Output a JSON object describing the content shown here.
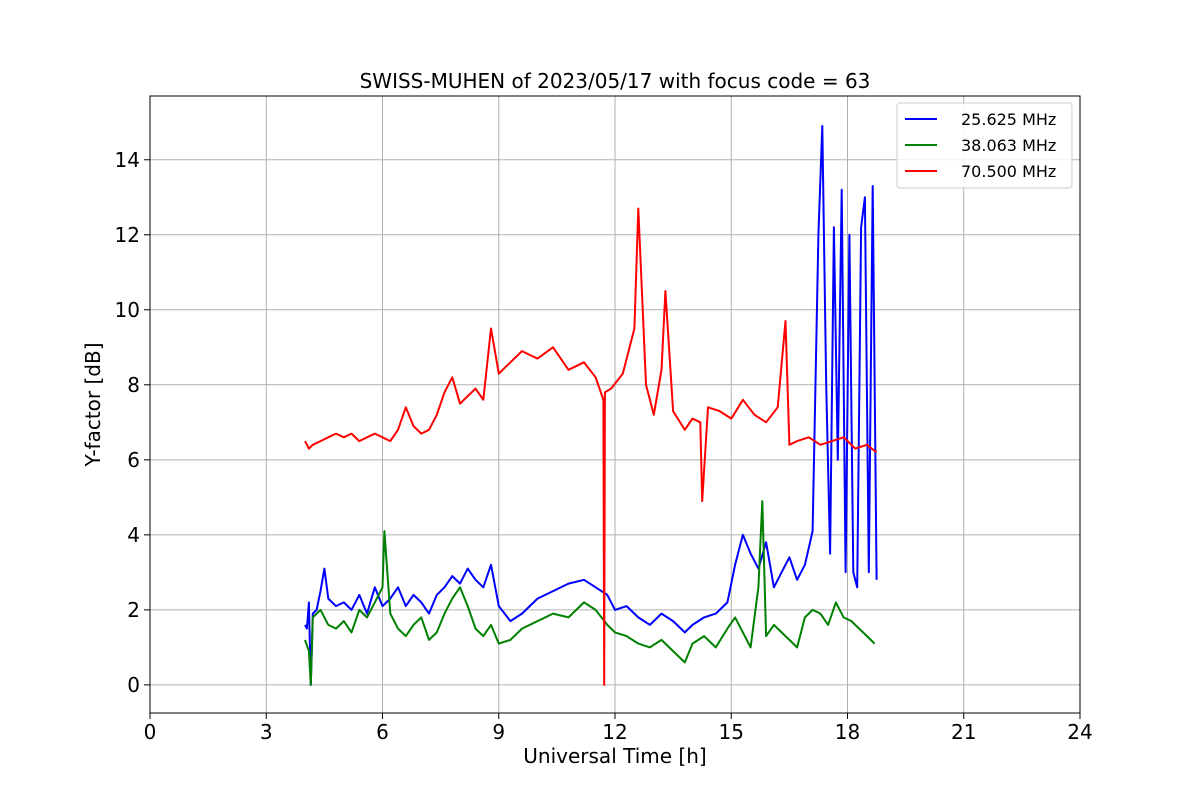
{
  "chart_data": {
    "type": "line",
    "title": "SWISS-MUHEN of 2023/05/17 with focus code = 63",
    "xlabel": "Universal Time [h]",
    "ylabel": "Y-factor [dB]",
    "xlim": [
      0,
      24
    ],
    "ylim": [
      -0.75,
      15.7
    ],
    "xticks": [
      0,
      3,
      6,
      9,
      12,
      15,
      18,
      21,
      24
    ],
    "yticks": [
      0,
      2,
      4,
      6,
      8,
      10,
      12,
      14
    ],
    "grid": true,
    "legend_position": "top-right",
    "series": [
      {
        "name": "25.625 MHz",
        "color": "#0000ff",
        "x": [
          4.0,
          4.05,
          4.1,
          4.15,
          4.2,
          4.3,
          4.4,
          4.5,
          4.6,
          4.8,
          5.0,
          5.2,
          5.4,
          5.6,
          5.8,
          6.0,
          6.2,
          6.4,
          6.6,
          6.8,
          7.0,
          7.2,
          7.4,
          7.6,
          7.8,
          8.0,
          8.2,
          8.4,
          8.6,
          8.8,
          9.0,
          9.3,
          9.6,
          10.0,
          10.4,
          10.8,
          11.2,
          11.5,
          11.8,
          12.0,
          12.3,
          12.6,
          12.9,
          13.2,
          13.5,
          13.8,
          14.0,
          14.3,
          14.6,
          14.9,
          15.1,
          15.3,
          15.5,
          15.7,
          15.9,
          16.1,
          16.3,
          16.5,
          16.7,
          16.9,
          17.1,
          17.25,
          17.35,
          17.45,
          17.55,
          17.65,
          17.75,
          17.85,
          17.95,
          18.05,
          18.15,
          18.25,
          18.35,
          18.45,
          18.55,
          18.65,
          18.75
        ],
        "y": [
          1.6,
          1.5,
          2.2,
          0.0,
          1.9,
          2.0,
          2.5,
          3.1,
          2.3,
          2.1,
          2.2,
          2.0,
          2.4,
          1.9,
          2.6,
          2.1,
          2.3,
          2.6,
          2.1,
          2.4,
          2.2,
          1.9,
          2.4,
          2.6,
          2.9,
          2.7,
          3.1,
          2.8,
          2.6,
          3.2,
          2.1,
          1.7,
          1.9,
          2.3,
          2.5,
          2.7,
          2.8,
          2.6,
          2.4,
          2.0,
          2.1,
          1.8,
          1.6,
          1.9,
          1.7,
          1.4,
          1.6,
          1.8,
          1.9,
          2.2,
          3.2,
          4.0,
          3.5,
          3.1,
          3.8,
          2.6,
          3.0,
          3.4,
          2.8,
          3.2,
          4.1,
          12.0,
          14.9,
          8.0,
          3.5,
          12.2,
          6.0,
          13.2,
          3.0,
          12.0,
          3.0,
          2.6,
          12.2,
          13.0,
          3.0,
          13.3,
          2.8
        ]
      },
      {
        "name": "38.063 MHz",
        "color": "#008000",
        "x": [
          4.0,
          4.1,
          4.15,
          4.2,
          4.4,
          4.6,
          4.8,
          5.0,
          5.2,
          5.4,
          5.6,
          5.8,
          6.0,
          6.05,
          6.2,
          6.4,
          6.6,
          6.8,
          7.0,
          7.2,
          7.4,
          7.6,
          7.8,
          8.0,
          8.2,
          8.4,
          8.6,
          8.8,
          9.0,
          9.3,
          9.6,
          10.0,
          10.4,
          10.8,
          11.2,
          11.5,
          11.8,
          12.0,
          12.3,
          12.6,
          12.9,
          13.2,
          13.5,
          13.8,
          14.0,
          14.3,
          14.6,
          14.9,
          15.1,
          15.3,
          15.5,
          15.7,
          15.8,
          15.9,
          16.1,
          16.3,
          16.5,
          16.7,
          16.9,
          17.1,
          17.3,
          17.5,
          17.7,
          17.9,
          18.1,
          18.3,
          18.5,
          18.7
        ],
        "y": [
          1.2,
          0.9,
          0.0,
          1.8,
          2.0,
          1.6,
          1.5,
          1.7,
          1.4,
          2.0,
          1.8,
          2.2,
          2.6,
          4.1,
          1.9,
          1.5,
          1.3,
          1.6,
          1.8,
          1.2,
          1.4,
          1.9,
          2.3,
          2.6,
          2.1,
          1.5,
          1.3,
          1.6,
          1.1,
          1.2,
          1.5,
          1.7,
          1.9,
          1.8,
          2.2,
          2.0,
          1.6,
          1.4,
          1.3,
          1.1,
          1.0,
          1.2,
          0.9,
          0.6,
          1.1,
          1.3,
          1.0,
          1.5,
          1.8,
          1.4,
          1.0,
          2.6,
          4.9,
          1.3,
          1.6,
          1.4,
          1.2,
          1.0,
          1.8,
          2.0,
          1.9,
          1.6,
          2.2,
          1.8,
          1.7,
          1.5,
          1.3,
          1.1
        ]
      },
      {
        "name": "70.500 MHz",
        "color": "#ff0000",
        "x": [
          4.0,
          4.1,
          4.2,
          4.4,
          4.6,
          4.8,
          5.0,
          5.2,
          5.4,
          5.6,
          5.8,
          6.0,
          6.2,
          6.4,
          6.6,
          6.8,
          7.0,
          7.2,
          7.4,
          7.6,
          7.8,
          8.0,
          8.2,
          8.4,
          8.6,
          8.8,
          9.0,
          9.3,
          9.6,
          10.0,
          10.4,
          10.8,
          11.2,
          11.5,
          11.7,
          11.72,
          11.74,
          11.9,
          12.2,
          12.5,
          12.6,
          12.8,
          13.0,
          13.2,
          13.3,
          13.5,
          13.8,
          14.0,
          14.2,
          14.25,
          14.4,
          14.7,
          15.0,
          15.3,
          15.6,
          15.9,
          16.2,
          16.4,
          16.5,
          16.7,
          17.0,
          17.3,
          17.6,
          17.9,
          18.2,
          18.5,
          18.75
        ],
        "y": [
          6.5,
          6.3,
          6.4,
          6.5,
          6.6,
          6.7,
          6.6,
          6.7,
          6.5,
          6.6,
          6.7,
          6.6,
          6.5,
          6.8,
          7.4,
          6.9,
          6.7,
          6.8,
          7.2,
          7.8,
          8.2,
          7.5,
          7.7,
          7.9,
          7.6,
          9.5,
          8.3,
          8.6,
          8.9,
          8.7,
          9.0,
          8.4,
          8.6,
          8.2,
          7.6,
          0.0,
          7.8,
          7.9,
          8.3,
          9.5,
          12.7,
          8.0,
          7.2,
          8.4,
          10.5,
          7.3,
          6.8,
          7.1,
          7.0,
          4.9,
          7.4,
          7.3,
          7.1,
          7.6,
          7.2,
          7.0,
          7.4,
          9.7,
          6.4,
          6.5,
          6.6,
          6.4,
          6.5,
          6.6,
          6.3,
          6.4,
          6.2
        ]
      }
    ]
  }
}
